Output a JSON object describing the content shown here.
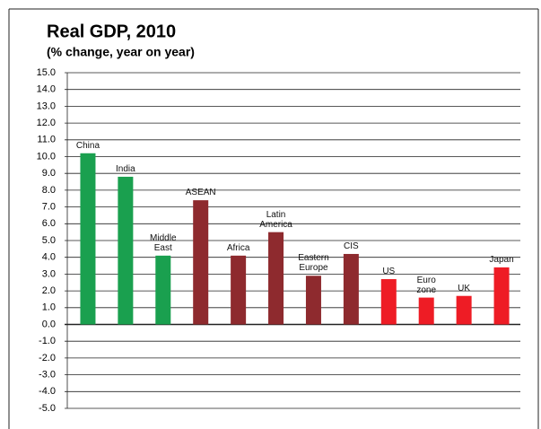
{
  "chart_data": {
    "type": "bar",
    "title": "Real GDP, 2010",
    "subtitle": "(% change, year on year)",
    "categories": [
      "China",
      "India",
      "Middle\nEast",
      "ASEAN",
      "Africa",
      "Latin\nAmerica",
      "Eastern\nEurope",
      "CIS",
      "US",
      "Euro\nzone",
      "UK",
      "Japan"
    ],
    "values": [
      10.2,
      8.8,
      4.1,
      7.4,
      4.1,
      5.5,
      2.9,
      4.2,
      2.7,
      1.6,
      1.7,
      3.4
    ],
    "colors": [
      "#1aa04f",
      "#1aa04f",
      "#1aa04f",
      "#8e2a2e",
      "#8e2a2e",
      "#8e2a2e",
      "#8e2a2e",
      "#8e2a2e",
      "#ee1c25",
      "#ee1c25",
      "#ee1c25",
      "#ee1c25"
    ],
    "ylim": [
      -5,
      15
    ],
    "yticks": [
      {
        "value": 15,
        "label": "15.0"
      },
      {
        "value": 14,
        "label": "14.0"
      },
      {
        "value": 13,
        "label": "13.0"
      },
      {
        "value": 12,
        "label": "12.0"
      },
      {
        "value": 11,
        "label": "11.0"
      },
      {
        "value": 10,
        "label": "10.0"
      },
      {
        "value": 9,
        "label": "9.0"
      },
      {
        "value": 8,
        "label": "8.0"
      },
      {
        "value": 7,
        "label": "7.0"
      },
      {
        "value": 6,
        "label": "6.0"
      },
      {
        "value": 5,
        "label": "5.0"
      },
      {
        "value": 4,
        "label": "4.0"
      },
      {
        "value": 3,
        "label": "3.0"
      },
      {
        "value": 2,
        "label": "2.0"
      },
      {
        "value": 1,
        "label": "1.0"
      },
      {
        "value": 0,
        "label": "0.0"
      },
      {
        "value": -1,
        "label": "-1.0"
      },
      {
        "value": -2,
        "label": "-2.0"
      },
      {
        "value": -3,
        "label": "-3.0"
      },
      {
        "value": -4,
        "label": "-4.0"
      },
      {
        "value": -5,
        "label": "-5.0"
      }
    ],
    "grid": true
  }
}
